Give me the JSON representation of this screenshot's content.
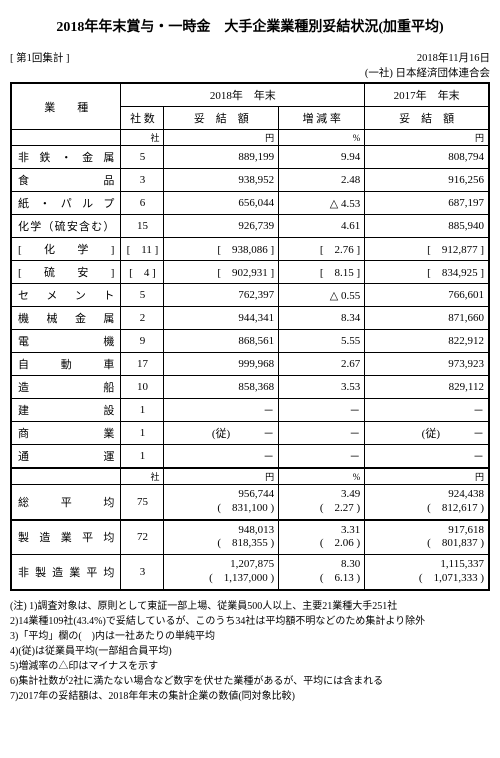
{
  "title": "2018年年末賞与・一時金　大手企業業種別妥結状況(加重平均)",
  "date": "2018年11月16日",
  "src": "(一社) 日本経済団体連合会",
  "round": "[ 第1回集計 ]",
  "head": {
    "industry": "業　　種",
    "y2018": "2018年　年末",
    "y2017": "2017年　年末",
    "count": "社 数",
    "amount": "妥　結　額",
    "rate": "増 減 率",
    "amount2": "妥　結　額"
  },
  "unit": {
    "c": "社",
    "y": "円",
    "p": "%",
    "y2": "円"
  },
  "rows": [
    {
      "name": "非鉄・金属",
      "c": "5",
      "a": "889,199",
      "r": "9.94",
      "a2": "808,794"
    },
    {
      "name": "食品",
      "c": "3",
      "a": "938,952",
      "r": "2.48",
      "a2": "916,256"
    },
    {
      "name": "紙・パルプ",
      "c": "6",
      "a": "656,044",
      "r": "△ 4.53",
      "a2": "687,197"
    },
    {
      "name": "化学（硫安含む）",
      "c": "15",
      "a": "926,739",
      "r": "4.61",
      "a2": "885,940"
    },
    {
      "name": "[　化　学　]",
      "c": "[　11 ]",
      "a": "[　938,086 ]",
      "r": "[　2.76 ]",
      "a2": "[　912,877 ]"
    },
    {
      "name": "[　硫　安　]",
      "c": "[　4 ]",
      "a": "[　902,931 ]",
      "r": "[　8.15 ]",
      "a2": "[　834,925 ]"
    },
    {
      "name": "セメント",
      "c": "5",
      "a": "762,397",
      "r": "△ 0.55",
      "a2": "766,601"
    },
    {
      "name": "機械金属",
      "c": "2",
      "a": "944,341",
      "r": "8.34",
      "a2": "871,660"
    },
    {
      "name": "電機",
      "c": "9",
      "a": "868,561",
      "r": "5.55",
      "a2": "822,912"
    },
    {
      "name": "自動車",
      "c": "17",
      "a": "999,968",
      "r": "2.67",
      "a2": "973,923"
    },
    {
      "name": "造船",
      "c": "10",
      "a": "858,368",
      "r": "3.53",
      "a2": "829,112"
    },
    {
      "name": "建設",
      "c": "1",
      "a": "－",
      "r": "－",
      "a2": "－"
    },
    {
      "name": "商業",
      "c": "1",
      "a": "(従)　　　－",
      "r": "－",
      "a2": "(従)　　　－"
    },
    {
      "name": "通運",
      "c": "1",
      "a": "－",
      "r": "－",
      "a2": "－"
    }
  ],
  "total": {
    "name": "総平均",
    "c": "75",
    "a1": "956,744",
    "a1b": "(　831,100 )",
    "r1": "3.49",
    "r1b": "(　2.27 )",
    "b1": "924,438",
    "b1b": "(　812,617 )"
  },
  "mfg": {
    "name": "製造業平均",
    "c": "72",
    "a1": "948,013",
    "a1b": "(　818,355 )",
    "r1": "3.31",
    "r1b": "(　2.06 )",
    "b1": "917,618",
    "b1b": "(　801,837 )"
  },
  "nonmfg": {
    "name": "非製造業平均",
    "c": "3",
    "a1": "1,207,875",
    "a1b": "(　1,137,000 )",
    "r1": "8.30",
    "r1b": "(　6.13 )",
    "b1": "1,115,337",
    "b1b": "(　1,071,333 )"
  },
  "notes": [
    "(注) 1)調査対象は、原則として東証一部上場、従業員500人以上、主要21業種大手251社",
    "2)14業種109社(43.4%)で妥結しているが、このうち34社は平均額不明などのため集計より除外",
    "3)「平均」欄の(　)内は一社あたりの単純平均",
    "4)(従)は従業員平均(一部組合員平均)",
    "5)増減率の△印はマイナスを示す",
    "6)集計社数が2社に満たない場合など数字を伏せた業種があるが、平均には含まれる",
    "7)2017年の妥結額は、2018年年末の集計企業の数値(同対象比較)"
  ]
}
